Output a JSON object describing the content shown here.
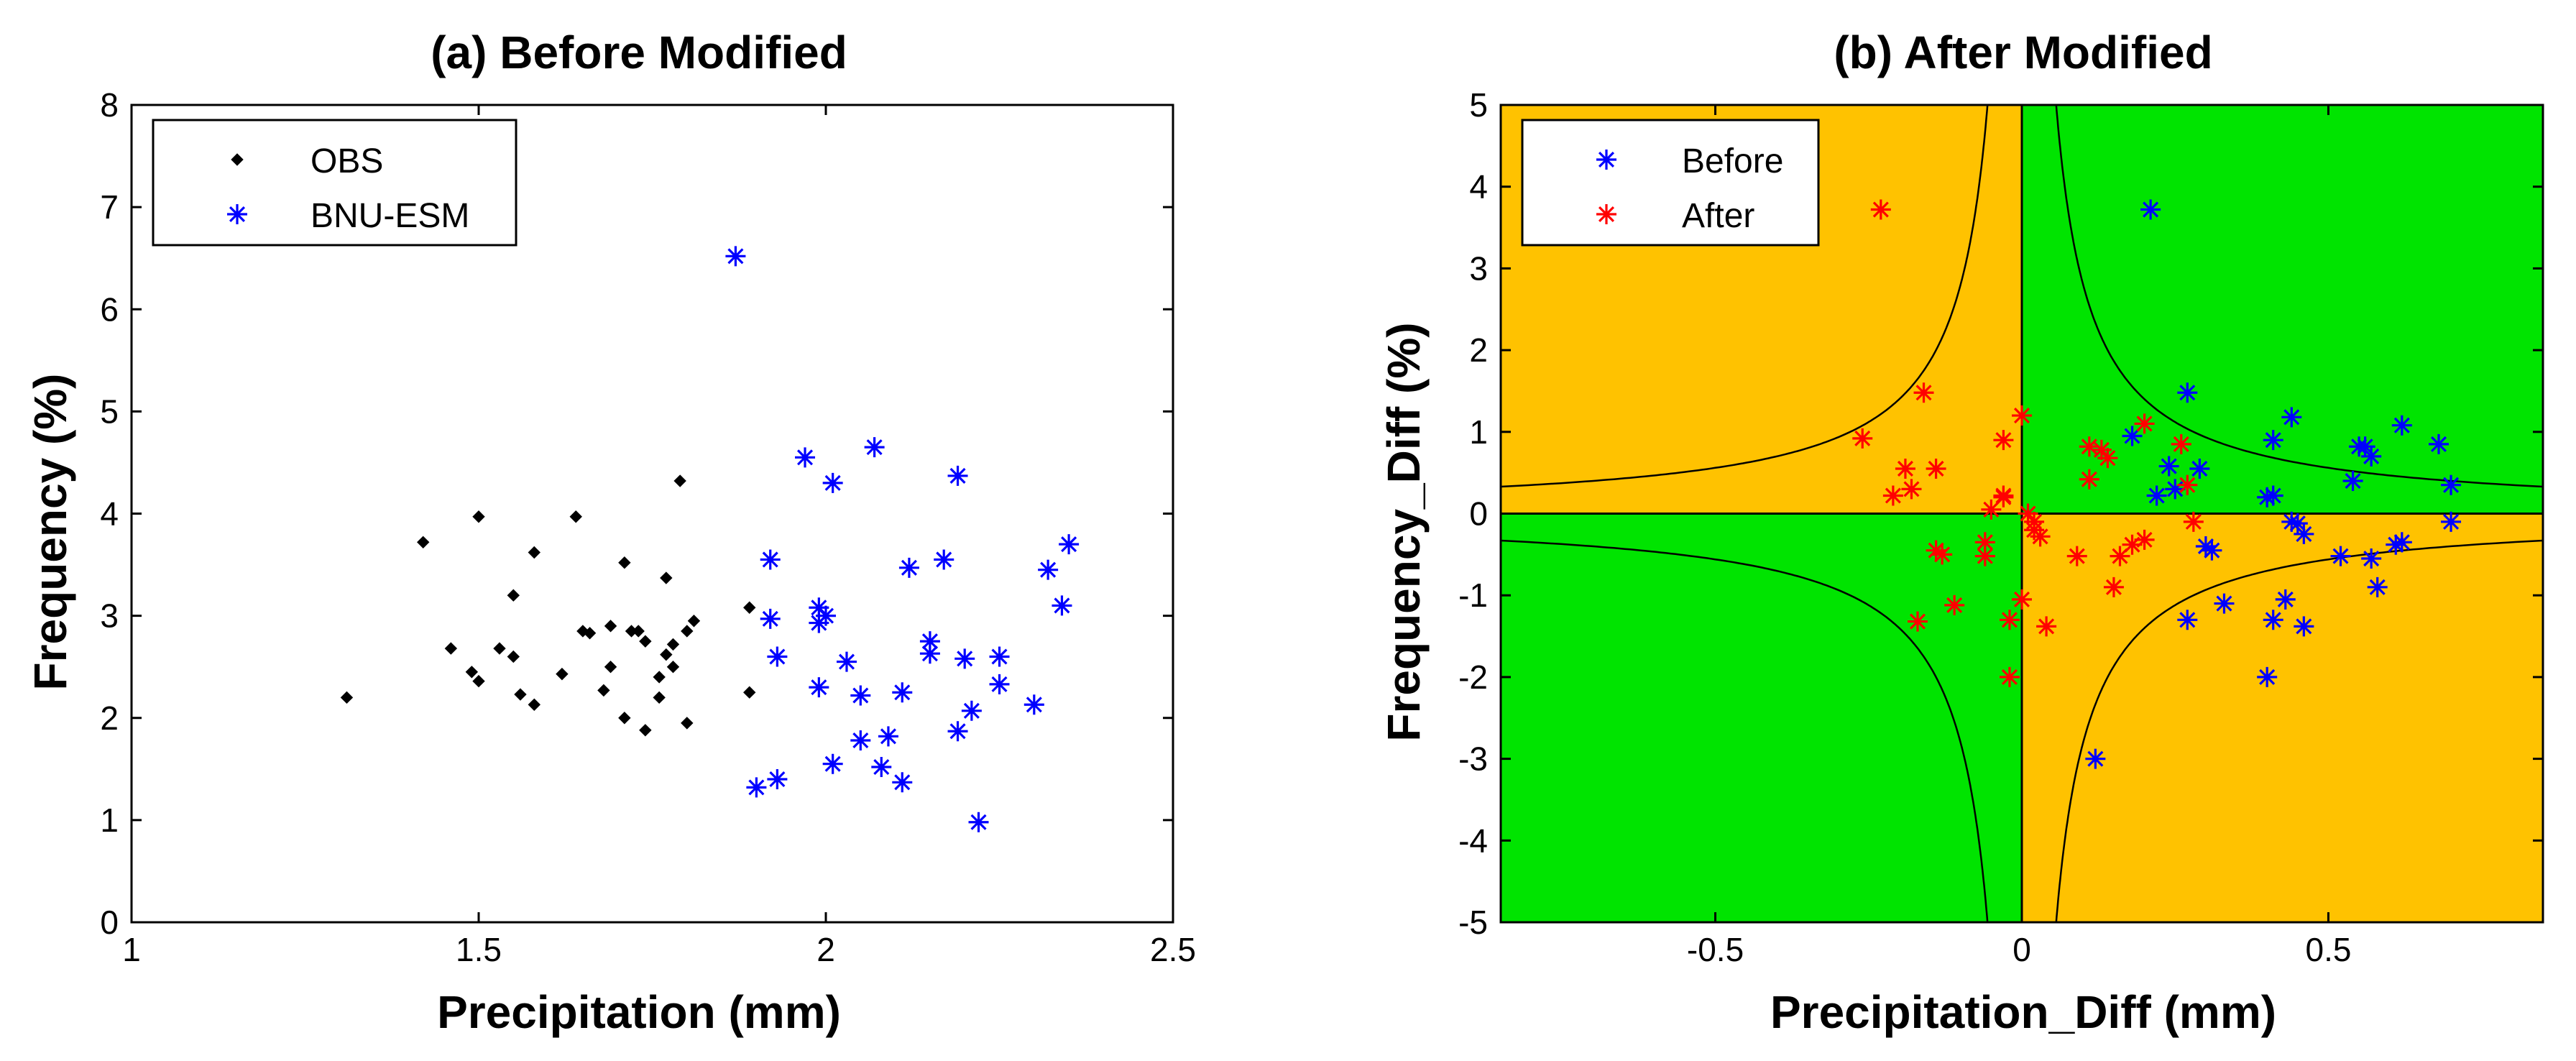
{
  "chart_data": [
    {
      "type": "scatter",
      "title": "(a) Before Modified",
      "xlabel": "Precipitation (mm)",
      "ylabel": "Frequency (%)",
      "xlim": [
        1,
        2.5
      ],
      "ylim": [
        0,
        8
      ],
      "xticks": [
        "1",
        "1.5",
        "2",
        "2.5"
      ],
      "yticks": [
        "0",
        "1",
        "2",
        "3",
        "4",
        "5",
        "6",
        "7",
        "8"
      ],
      "legend_position": "top-left",
      "series": [
        {
          "name": "OBS",
          "color": "#000000",
          "marker": "diamond",
          "points": [
            [
              1.31,
              2.2
            ],
            [
              1.42,
              3.72
            ],
            [
              1.46,
              2.68
            ],
            [
              1.49,
              2.45
            ],
            [
              1.5,
              3.97
            ],
            [
              1.5,
              2.36
            ],
            [
              1.53,
              2.68
            ],
            [
              1.55,
              3.2
            ],
            [
              1.55,
              2.6
            ],
            [
              1.56,
              2.23
            ],
            [
              1.58,
              3.62
            ],
            [
              1.58,
              2.13
            ],
            [
              1.62,
              2.43
            ],
            [
              1.64,
              3.97
            ],
            [
              1.65,
              2.85
            ],
            [
              1.66,
              2.83
            ],
            [
              1.68,
              2.27
            ],
            [
              1.69,
              2.5
            ],
            [
              1.69,
              2.9
            ],
            [
              1.71,
              3.52
            ],
            [
              1.71,
              2.0
            ],
            [
              1.72,
              2.85
            ],
            [
              1.73,
              2.85
            ],
            [
              1.74,
              2.75
            ],
            [
              1.74,
              1.88
            ],
            [
              1.76,
              2.2
            ],
            [
              1.76,
              2.4
            ],
            [
              1.77,
              3.37
            ],
            [
              1.77,
              2.62
            ],
            [
              1.78,
              2.72
            ],
            [
              1.78,
              2.5
            ],
            [
              1.79,
              4.32
            ],
            [
              1.8,
              1.95
            ],
            [
              1.8,
              2.85
            ],
            [
              1.81,
              2.95
            ],
            [
              1.89,
              3.08
            ],
            [
              1.89,
              2.25
            ]
          ]
        },
        {
          "name": "BNU-ESM",
          "color": "#0000ff",
          "marker": "asterisk",
          "points": [
            [
              1.87,
              6.52
            ],
            [
              1.9,
              1.32
            ],
            [
              1.92,
              2.97
            ],
            [
              1.92,
              3.55
            ],
            [
              1.93,
              1.4
            ],
            [
              1.93,
              2.6
            ],
            [
              1.97,
              4.55
            ],
            [
              1.99,
              3.08
            ],
            [
              1.99,
              2.93
            ],
            [
              1.99,
              2.3
            ],
            [
              2.0,
              3.0
            ],
            [
              2.01,
              1.55
            ],
            [
              2.01,
              4.3
            ],
            [
              2.03,
              2.55
            ],
            [
              2.05,
              2.22
            ],
            [
              2.05,
              1.78
            ],
            [
              2.07,
              4.65
            ],
            [
              2.08,
              1.52
            ],
            [
              2.09,
              1.82
            ],
            [
              2.11,
              1.37
            ],
            [
              2.11,
              2.25
            ],
            [
              2.12,
              3.47
            ],
            [
              2.15,
              2.75
            ],
            [
              2.15,
              2.63
            ],
            [
              2.17,
              3.55
            ],
            [
              2.19,
              4.37
            ],
            [
              2.19,
              1.87
            ],
            [
              2.2,
              2.58
            ],
            [
              2.21,
              2.07
            ],
            [
              2.22,
              0.98
            ],
            [
              2.25,
              2.33
            ],
            [
              2.25,
              2.6
            ],
            [
              2.3,
              2.13
            ],
            [
              2.32,
              3.45
            ],
            [
              2.34,
              3.1
            ],
            [
              2.35,
              3.7
            ]
          ]
        }
      ]
    },
    {
      "type": "scatter",
      "title": "(b) After Modified",
      "xlabel": "Precipitation_Diff (mm)",
      "ylabel": "Frequency_Diff (%)",
      "xlim": [
        -0.85,
        0.85
      ],
      "ylim": [
        -5,
        5
      ],
      "xticks": [
        "-0.5",
        "0",
        "0.5"
      ],
      "yticks": [
        "-5",
        "-4",
        "-3",
        "-2",
        "-1",
        "0",
        "1",
        "2",
        "3",
        "4",
        "5"
      ],
      "legend_position": "top-left",
      "background_regions": [
        {
          "quadrant": "x<0,y>0",
          "color": "#ffc200"
        },
        {
          "quadrant": "x>0,y>0",
          "color": "#00e400"
        },
        {
          "quadrant": "x<0,y<0",
          "color": "#00e400"
        },
        {
          "quadrant": "x>0,y<0",
          "color": "#ffc200"
        }
      ],
      "reference_curves": "hyperbola |x*y| = 0.28",
      "series": [
        {
          "name": "Before",
          "color": "#0000ff",
          "marker": "asterisk",
          "points": [
            [
              0.21,
              3.72
            ],
            [
              0.27,
              1.48
            ],
            [
              0.18,
              0.95
            ],
            [
              0.24,
              0.58
            ],
            [
              0.25,
              0.3
            ],
            [
              0.22,
              0.22
            ],
            [
              0.29,
              0.55
            ],
            [
              0.27,
              -1.3
            ],
            [
              0.3,
              -0.4
            ],
            [
              0.31,
              -0.45
            ],
            [
              0.33,
              -1.1
            ],
            [
              0.12,
              -3.0
            ],
            [
              0.41,
              0.9
            ],
            [
              0.44,
              1.18
            ],
            [
              0.41,
              0.22
            ],
            [
              0.4,
              0.2
            ],
            [
              0.44,
              -0.1
            ],
            [
              0.45,
              -0.12
            ],
            [
              0.46,
              -0.25
            ],
            [
              0.43,
              -1.05
            ],
            [
              0.41,
              -1.3
            ],
            [
              0.46,
              -1.38
            ],
            [
              0.4,
              -2.0
            ],
            [
              0.52,
              -0.52
            ],
            [
              0.54,
              0.4
            ],
            [
              0.55,
              0.82
            ],
            [
              0.56,
              0.82
            ],
            [
              0.57,
              0.7
            ],
            [
              0.57,
              -0.55
            ],
            [
              0.58,
              -0.9
            ],
            [
              0.61,
              -0.38
            ],
            [
              0.62,
              -0.35
            ],
            [
              0.62,
              1.08
            ],
            [
              0.68,
              0.85
            ],
            [
              0.7,
              0.35
            ],
            [
              0.7,
              -0.1
            ]
          ]
        },
        {
          "name": "After",
          "color": "#ff0000",
          "marker": "asterisk",
          "points": [
            [
              -0.23,
              3.72
            ],
            [
              -0.26,
              0.92
            ],
            [
              -0.21,
              0.22
            ],
            [
              -0.19,
              0.55
            ],
            [
              -0.18,
              0.3
            ],
            [
              -0.17,
              -1.32
            ],
            [
              -0.16,
              1.48
            ],
            [
              -0.14,
              0.55
            ],
            [
              -0.14,
              -0.45
            ],
            [
              -0.13,
              -0.5
            ],
            [
              -0.11,
              -1.12
            ],
            [
              -0.06,
              -0.52
            ],
            [
              -0.06,
              -0.35
            ],
            [
              -0.05,
              0.05
            ],
            [
              -0.03,
              0.22
            ],
            [
              -0.03,
              0.2
            ],
            [
              -0.03,
              0.9
            ],
            [
              -0.02,
              -1.3
            ],
            [
              -0.02,
              -2.0
            ],
            [
              0.0,
              -1.05
            ],
            [
              0.0,
              1.2
            ],
            [
              0.01,
              0.0
            ],
            [
              0.02,
              -0.1
            ],
            [
              0.02,
              -0.2
            ],
            [
              0.03,
              -0.28
            ],
            [
              0.04,
              -1.38
            ],
            [
              0.09,
              -0.52
            ],
            [
              0.11,
              0.42
            ],
            [
              0.11,
              0.82
            ],
            [
              0.13,
              0.78
            ],
            [
              0.14,
              0.68
            ],
            [
              0.15,
              -0.9
            ],
            [
              0.16,
              -0.52
            ],
            [
              0.18,
              -0.38
            ],
            [
              0.2,
              -0.32
            ],
            [
              0.2,
              1.1
            ],
            [
              0.26,
              0.85
            ],
            [
              0.27,
              0.35
            ],
            [
              0.28,
              -0.1
            ]
          ]
        }
      ]
    }
  ]
}
